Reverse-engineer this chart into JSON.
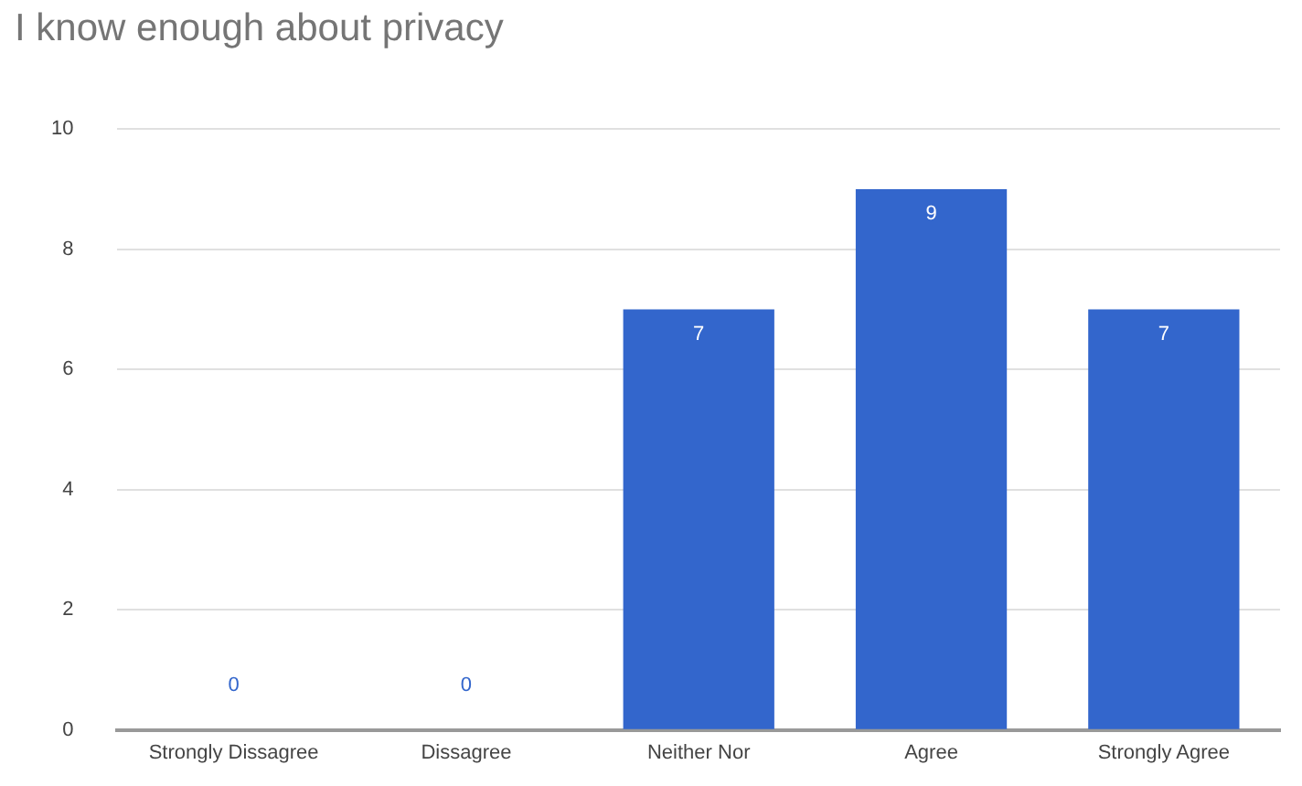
{
  "chart_data": {
    "type": "bar",
    "title": "I know enough about privacy",
    "categories": [
      "Strongly Dissagree",
      "Dissagree",
      "Neither Nor",
      "Agree",
      "Strongly Agree"
    ],
    "values": [
      0,
      0,
      7,
      9,
      7
    ],
    "color": "#3366cc",
    "ylim": [
      0,
      10
    ],
    "yticks": [
      0,
      2,
      4,
      6,
      8,
      10
    ],
    "grid": "y",
    "data_labels": true
  }
}
